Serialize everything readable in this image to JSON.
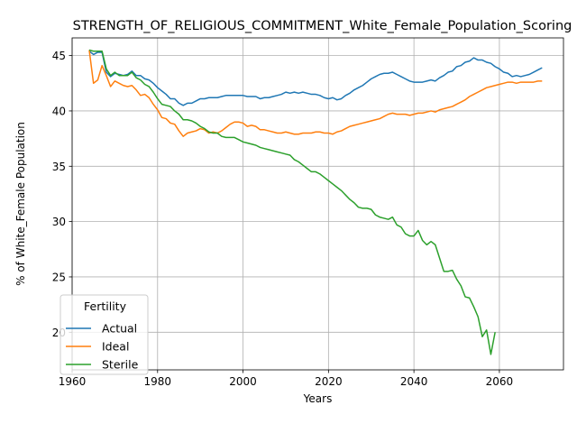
{
  "chart_data": {
    "type": "line",
    "title": "STRENGTH_OF_RELIGIOUS_COMMITMENT_White_Female_Population_Scoring",
    "xlabel": "Years",
    "ylabel": "% of White_Female Population",
    "xlim": [
      1960,
      2075
    ],
    "ylim": [
      16.6,
      46.6
    ],
    "xticks": [
      1960,
      1980,
      2000,
      2020,
      2040,
      2060
    ],
    "yticks": [
      20,
      25,
      30,
      35,
      40,
      45
    ],
    "grid": true,
    "legend": {
      "title": "Fertility",
      "placement": "lower-left"
    },
    "series": [
      {
        "name": "Actual",
        "color": "#1f77b4",
        "x": [
          1964,
          1965,
          1966,
          1967,
          1968,
          1969,
          1970,
          1971,
          1972,
          1973,
          1974,
          1975,
          1976,
          1977,
          1978,
          1979,
          1980,
          1981,
          1982,
          1983,
          1984,
          1985,
          1986,
          1987,
          1988,
          1989,
          1990,
          1991,
          1992,
          1993,
          1994,
          1995,
          1996,
          1997,
          1998,
          1999,
          2000,
          2001,
          2002,
          2003,
          2004,
          2005,
          2006,
          2007,
          2008,
          2009,
          2010,
          2011,
          2012,
          2013,
          2014,
          2015,
          2016,
          2017,
          2018,
          2019,
          2020,
          2021,
          2022,
          2023,
          2024,
          2025,
          2026,
          2027,
          2028,
          2029,
          2030,
          2031,
          2032,
          2033,
          2034,
          2035,
          2036,
          2037,
          2038,
          2039,
          2040,
          2041,
          2042,
          2043,
          2044,
          2045,
          2046,
          2047,
          2048,
          2049,
          2050,
          2051,
          2052,
          2053,
          2054,
          2055,
          2056,
          2057,
          2058,
          2059,
          2060,
          2061,
          2062,
          2063,
          2064,
          2065,
          2066,
          2067,
          2068,
          2069,
          2070
        ],
        "y": [
          45.4,
          45.1,
          45.3,
          45.3,
          43.5,
          43.1,
          43.4,
          43.3,
          43.2,
          43.3,
          43.6,
          43.2,
          43.2,
          42.9,
          42.8,
          42.5,
          42.1,
          41.8,
          41.5,
          41.1,
          41.1,
          40.7,
          40.5,
          40.7,
          40.7,
          40.9,
          41.1,
          41.1,
          41.2,
          41.2,
          41.2,
          41.3,
          41.4,
          41.4,
          41.4,
          41.4,
          41.4,
          41.3,
          41.3,
          41.3,
          41.1,
          41.2,
          41.2,
          41.3,
          41.4,
          41.5,
          41.7,
          41.6,
          41.7,
          41.6,
          41.7,
          41.6,
          41.5,
          41.5,
          41.4,
          41.2,
          41.1,
          41.2,
          41.0,
          41.1,
          41.4,
          41.6,
          41.9,
          42.1,
          42.3,
          42.6,
          42.9,
          43.1,
          43.3,
          43.4,
          43.4,
          43.5,
          43.3,
          43.1,
          42.9,
          42.7,
          42.6,
          42.6,
          42.6,
          42.7,
          42.8,
          42.7,
          43.0,
          43.2,
          43.5,
          43.6,
          44.0,
          44.1,
          44.4,
          44.5,
          44.8,
          44.6,
          44.6,
          44.4,
          44.3,
          44.0,
          43.8,
          43.5,
          43.4,
          43.1,
          43.2,
          43.1,
          43.2,
          43.3,
          43.5,
          43.7,
          43.9
        ]
      },
      {
        "name": "Ideal",
        "color": "#ff7f0e",
        "x": [
          1964,
          1965,
          1966,
          1967,
          1968,
          1969,
          1970,
          1971,
          1972,
          1973,
          1974,
          1975,
          1976,
          1977,
          1978,
          1979,
          1980,
          1981,
          1982,
          1983,
          1984,
          1985,
          1986,
          1987,
          1988,
          1989,
          1990,
          1991,
          1992,
          1993,
          1994,
          1995,
          1996,
          1997,
          1998,
          1999,
          2000,
          2001,
          2002,
          2003,
          2004,
          2005,
          2006,
          2007,
          2008,
          2009,
          2010,
          2011,
          2012,
          2013,
          2014,
          2015,
          2016,
          2017,
          2018,
          2019,
          2020,
          2021,
          2022,
          2023,
          2024,
          2025,
          2026,
          2027,
          2028,
          2029,
          2030,
          2031,
          2032,
          2033,
          2034,
          2035,
          2036,
          2037,
          2038,
          2039,
          2040,
          2041,
          2042,
          2043,
          2044,
          2045,
          2046,
          2047,
          2048,
          2049,
          2050,
          2051,
          2052,
          2053,
          2054,
          2055,
          2056,
          2057,
          2058,
          2059,
          2060,
          2061,
          2062,
          2063,
          2064,
          2065,
          2066,
          2067,
          2068,
          2069,
          2070
        ],
        "y": [
          45.5,
          42.5,
          42.8,
          44.1,
          43.2,
          42.2,
          42.7,
          42.5,
          42.3,
          42.2,
          42.3,
          41.9,
          41.4,
          41.5,
          41.2,
          40.6,
          40.1,
          39.4,
          39.3,
          38.9,
          38.8,
          38.2,
          37.7,
          38.0,
          38.1,
          38.2,
          38.4,
          38.3,
          38.0,
          38.1,
          38.0,
          38.2,
          38.5,
          38.8,
          39.0,
          39.0,
          38.9,
          38.6,
          38.7,
          38.6,
          38.3,
          38.3,
          38.2,
          38.1,
          38.0,
          38.0,
          38.1,
          38.0,
          37.9,
          37.9,
          38.0,
          38.0,
          38.0,
          38.1,
          38.1,
          38.0,
          38.0,
          37.9,
          38.1,
          38.2,
          38.4,
          38.6,
          38.7,
          38.8,
          38.9,
          39.0,
          39.1,
          39.2,
          39.3,
          39.5,
          39.7,
          39.8,
          39.7,
          39.7,
          39.7,
          39.6,
          39.7,
          39.8,
          39.8,
          39.9,
          40.0,
          39.9,
          40.1,
          40.2,
          40.3,
          40.4,
          40.6,
          40.8,
          41.0,
          41.3,
          41.5,
          41.7,
          41.9,
          42.1,
          42.2,
          42.3,
          42.4,
          42.5,
          42.6,
          42.6,
          42.5,
          42.6,
          42.6,
          42.6,
          42.6,
          42.7,
          42.7
        ]
      },
      {
        "name": "Sterile",
        "color": "#2ca02c",
        "x": [
          1964,
          1965,
          1966,
          1967,
          1968,
          1969,
          1970,
          1971,
          1972,
          1973,
          1974,
          1975,
          1976,
          1977,
          1978,
          1979,
          1980,
          1981,
          1982,
          1983,
          1984,
          1985,
          1986,
          1987,
          1988,
          1989,
          1990,
          1991,
          1992,
          1993,
          1994,
          1995,
          1996,
          1997,
          1998,
          1999,
          2000,
          2001,
          2002,
          2003,
          2004,
          2005,
          2006,
          2007,
          2008,
          2009,
          2010,
          2011,
          2012,
          2013,
          2014,
          2015,
          2016,
          2017,
          2018,
          2019,
          2020,
          2021,
          2022,
          2023,
          2024,
          2025,
          2026,
          2027,
          2028,
          2029,
          2030,
          2031,
          2032,
          2033,
          2034,
          2035,
          2036,
          2037,
          2038,
          2039,
          2040,
          2041,
          2042,
          2043,
          2044,
          2045,
          2046,
          2047,
          2048,
          2049,
          2050,
          2051,
          2052,
          2053,
          2054,
          2055,
          2056,
          2057,
          2058,
          2059
        ],
        "y": [
          45.5,
          45.4,
          45.4,
          45.4,
          43.8,
          43.2,
          43.5,
          43.2,
          43.2,
          43.2,
          43.5,
          43.0,
          42.8,
          42.4,
          42.2,
          41.7,
          41.1,
          40.6,
          40.5,
          40.4,
          40.0,
          39.7,
          39.2,
          39.2,
          39.1,
          38.9,
          38.6,
          38.4,
          38.1,
          38.0,
          38.0,
          37.7,
          37.6,
          37.6,
          37.6,
          37.4,
          37.2,
          37.1,
          37.0,
          36.9,
          36.7,
          36.6,
          36.5,
          36.4,
          36.3,
          36.2,
          36.1,
          36.0,
          35.6,
          35.4,
          35.1,
          34.8,
          34.5,
          34.5,
          34.3,
          34.0,
          33.7,
          33.4,
          33.1,
          32.8,
          32.4,
          32.0,
          31.7,
          31.3,
          31.2,
          31.2,
          31.1,
          30.6,
          30.4,
          30.3,
          30.2,
          30.4,
          29.7,
          29.5,
          28.9,
          28.7,
          28.7,
          29.2,
          28.3,
          27.9,
          28.2,
          27.9,
          26.7,
          25.5,
          25.5,
          25.6,
          24.8,
          24.2,
          23.2,
          23.1,
          22.3,
          21.4,
          19.6,
          20.2,
          18.0,
          20.0
        ]
      }
    ]
  }
}
